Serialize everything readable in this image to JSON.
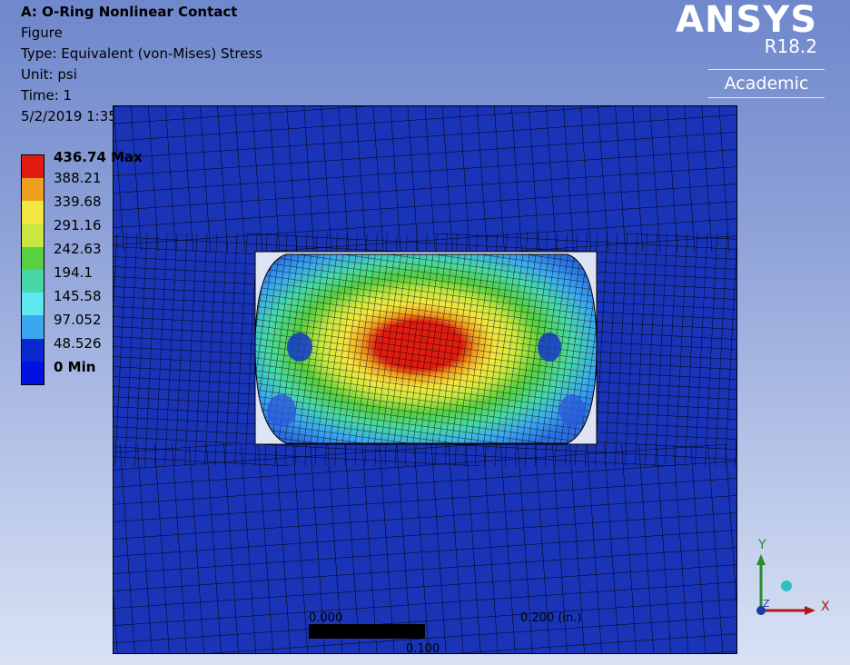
{
  "header": {
    "title": "A: O-Ring Nonlinear Contact",
    "figure": "Figure",
    "type": "Type: Equivalent (von-Mises) Stress",
    "unit": "Unit: psi",
    "time": "Time: 1",
    "date": "5/2/2019 1:35 PM"
  },
  "brand": {
    "logo": "ANSYS",
    "version": "R18.2",
    "edition": "Academic"
  },
  "legend": {
    "max_label": "436.74 Max",
    "min_label": "0 Min",
    "values": [
      "388.21",
      "339.68",
      "291.16",
      "242.63",
      "194.1",
      "145.58",
      "97.052",
      "48.526"
    ],
    "colors": [
      "#e01b0f",
      "#f0a020",
      "#f2e640",
      "#c8e840",
      "#58d040",
      "#48d8a8",
      "#60e8f0",
      "#3aa8f0",
      "#0a28d0",
      "#0010e0"
    ]
  },
  "scale": {
    "left": "0.000",
    "right": "0.200 (in.)",
    "middle": "0.100"
  },
  "triad": {
    "y": "Y",
    "x": "X",
    "z": "Z"
  },
  "colors": {
    "background_mesh": "#1a34b8",
    "mesh_line": "#000000"
  }
}
